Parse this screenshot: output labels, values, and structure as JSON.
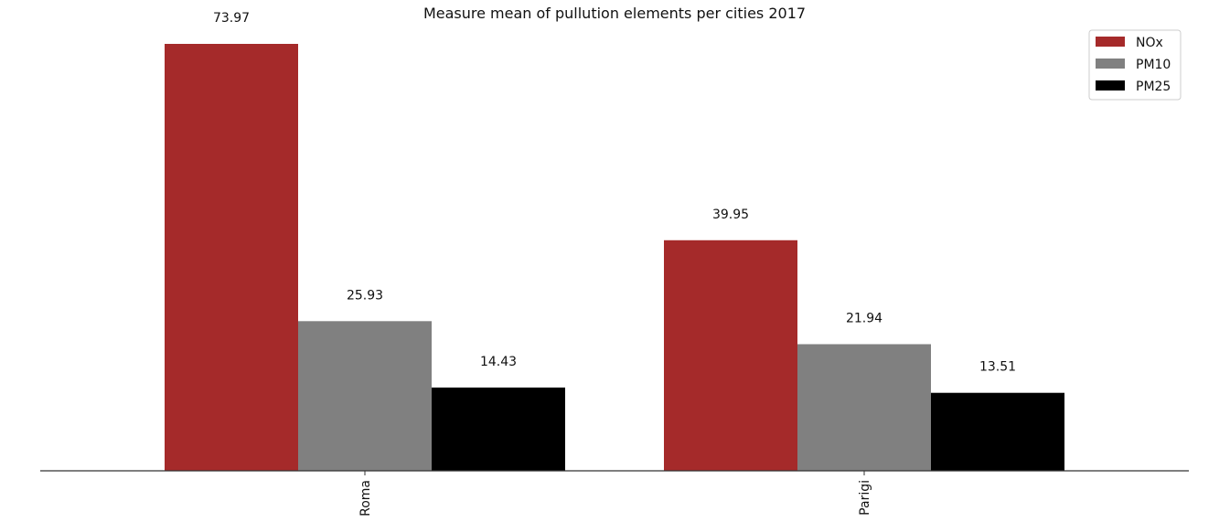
{
  "chart_data": {
    "type": "bar",
    "title": "Measure mean of pullution elements per cities 2017",
    "xlabel": "",
    "ylabel": "",
    "categories": [
      "Roma",
      "Parigi"
    ],
    "series": [
      {
        "name": "NOx",
        "color": "#a52a2a",
        "values": [
          73.97,
          39.95
        ]
      },
      {
        "name": "PM10",
        "color": "#808080",
        "values": [
          25.93,
          21.94
        ]
      },
      {
        "name": "PM25",
        "color": "#000000",
        "values": [
          14.43,
          13.51
        ]
      }
    ],
    "value_labels": [
      [
        "73.97",
        "39.95"
      ],
      [
        "25.93",
        "21.94"
      ],
      [
        "14.43",
        "13.51"
      ]
    ],
    "ylim": [
      0,
      73.97
    ],
    "grid": false,
    "legend_position": "top-right",
    "x_tick_rotation": "vertical"
  }
}
